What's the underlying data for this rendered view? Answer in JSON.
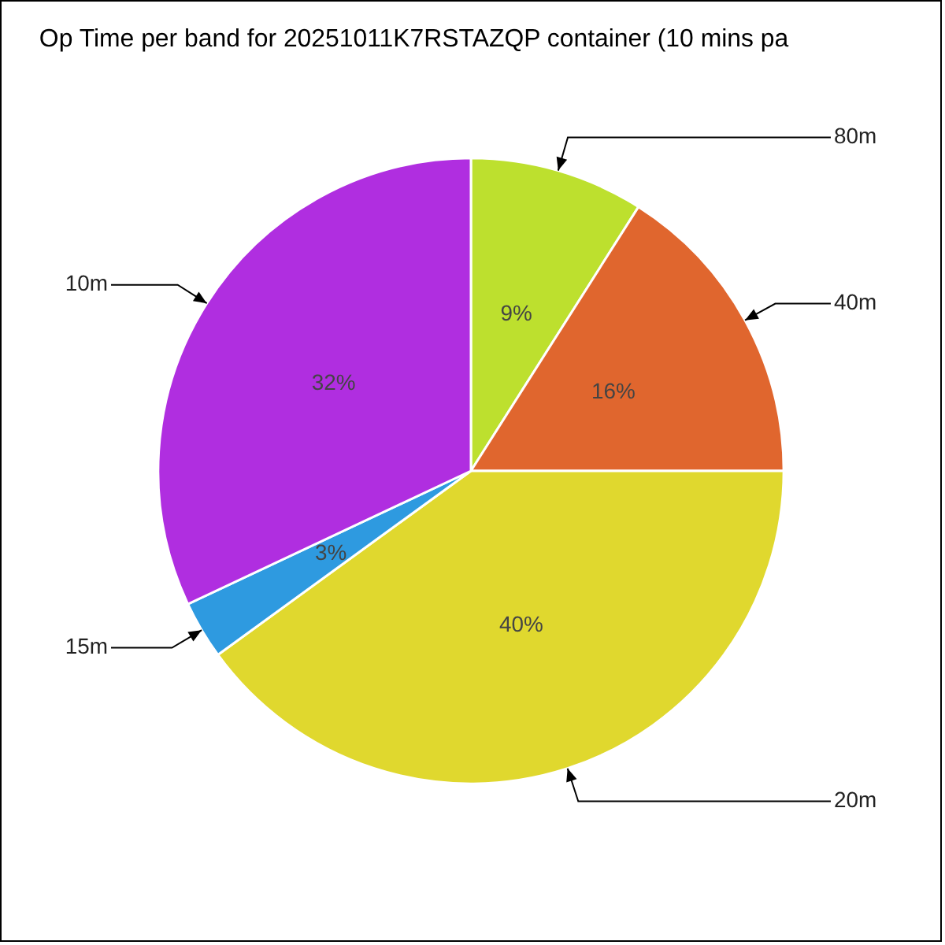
{
  "chart_data": {
    "type": "pie",
    "title": "Op Time per band for 20251011K7RSTAZQP container (10 mins pa",
    "categories": [
      "80m",
      "40m",
      "20m",
      "15m",
      "10m"
    ],
    "values": [
      9,
      16,
      40,
      3,
      32
    ],
    "value_labels": [
      "9%",
      "16%",
      "40%",
      "3%",
      "32%"
    ],
    "colors": [
      "#bde02e",
      "#e0662e",
      "#e0d82e",
      "#2e9ae0",
      "#b02ee0"
    ],
    "legend": false
  }
}
